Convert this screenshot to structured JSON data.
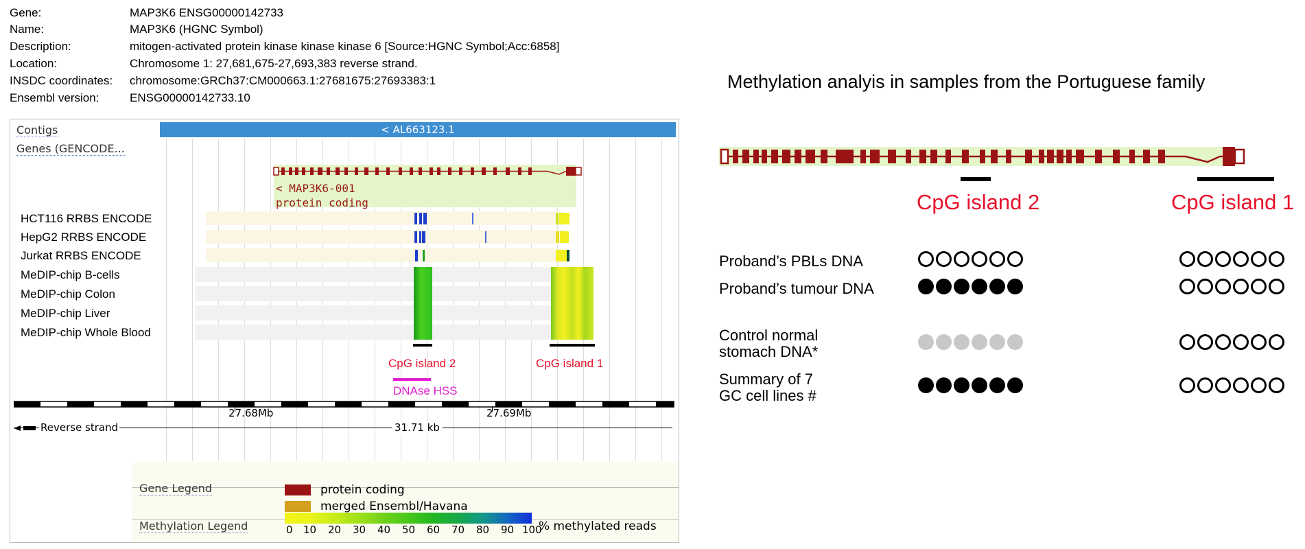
{
  "gene_info": [
    {
      "key": "Gene:",
      "value": "MAP3K6 ENSG00000142733"
    },
    {
      "key": "Name:",
      "value": "MAP3K6 (HGNC Symbol)"
    },
    {
      "key": "Description:",
      "value": "mitogen-activated protein kinase kinase kinase 6 [Source:HGNC Symbol;Acc:6858]"
    },
    {
      "key": "Location:",
      "value": "Chromosome 1: 27,681,675-27,693,383 reverse strand."
    },
    {
      "key": "INSDC coordinates:",
      "value": "chromosome:GRCh37:CM000663.1:27681675:27693383:1"
    },
    {
      "key": "Ensembl version:",
      "value": "ENSG00000142733.10"
    }
  ],
  "ensembl": {
    "contigs_label": "Contigs",
    "contig_name": "< AL663123.1",
    "genes_label": "Genes (GENCODE...",
    "transcript_name": "< MAP3K6-001",
    "transcript_type": "protein coding",
    "tracks": [
      "HCT116 RRBS ENCODE",
      "HepG2 RRBS ENCODE",
      "Jurkat RRBS ENCODE",
      "MeDIP-chip B-cells",
      "MeDIP-chip Colon",
      "MeDIP-chip Liver",
      "MeDIP-chip Whole Blood"
    ],
    "cpg_island_2": "CpG island 2",
    "cpg_island_1": "CpG island 1",
    "dnase": "DNAse HSS",
    "scale_left": "27.68Mb",
    "scale_right": "27.69Mb",
    "strand": "Reverse strand",
    "length": "31.71 kb",
    "gene_legend_label": "Gene Legend",
    "legend_protein": "protein coding",
    "legend_merged": "merged Ensembl/Havana",
    "methylation_legend_label": "Methylation Legend",
    "methylation_unit": "% methylated reads",
    "scale_ticks": [
      "0",
      "10",
      "20",
      "30",
      "40",
      "50",
      "60",
      "70",
      "80",
      "90",
      "100"
    ],
    "colors": {
      "protein_coding": "#9b1414",
      "merged": "#d4a020",
      "contig": "#3d8fd1",
      "cpg": "#e8112b",
      "dnase": "#e020d0"
    }
  },
  "right": {
    "title": "Methylation analyis in samples from the Portuguese family",
    "cpg_island_2": "CpG island 2",
    "cpg_island_1": "CpG island 1",
    "rows": [
      {
        "label_line1": "Proband’s PBLs DNA",
        "label_line2": "",
        "island2": "unmethylated",
        "island1": "unmethylated"
      },
      {
        "label_line1": "Proband’s tumour DNA",
        "label_line2": "",
        "island2": "methylated",
        "island1": "unmethylated"
      },
      {
        "label_line1": "Control normal",
        "label_line2": "stomach DNA*",
        "island2": "not determined",
        "island1": "unmethylated"
      },
      {
        "label_line1": "Summary of 7",
        "label_line2": "GC cell lines #",
        "island2": "methylated",
        "island1": "unmethylated"
      }
    ]
  }
}
